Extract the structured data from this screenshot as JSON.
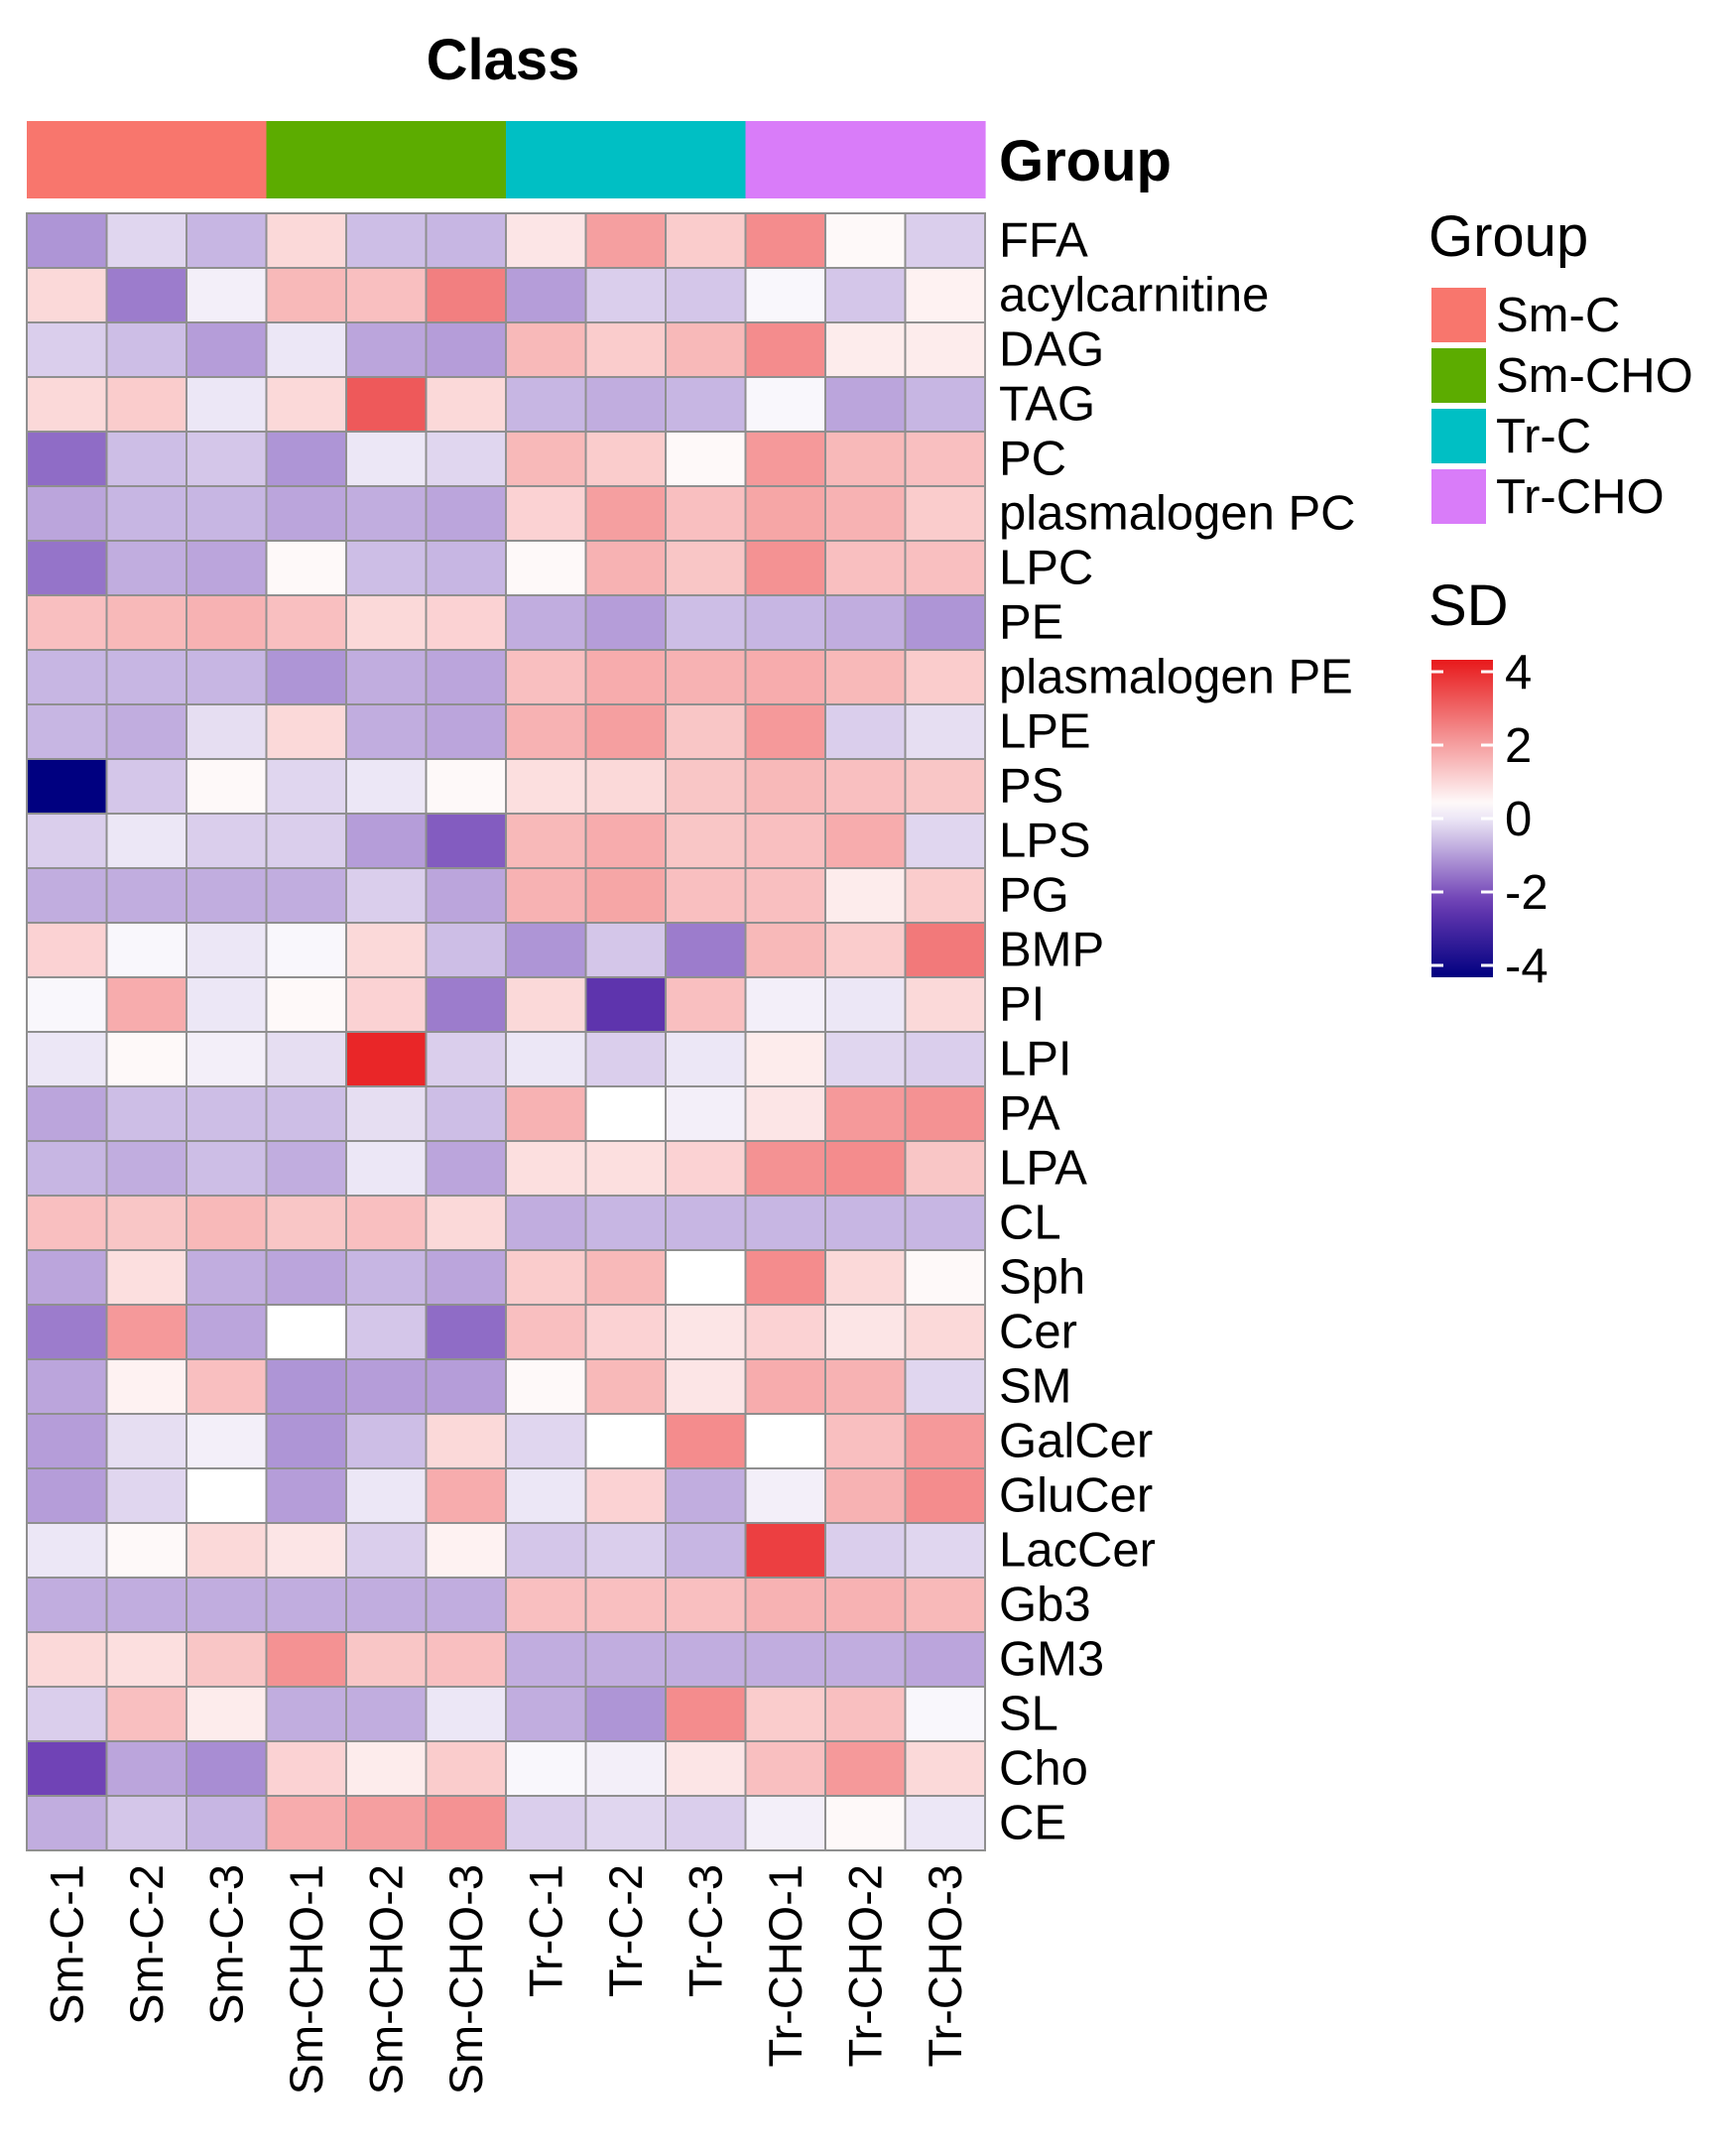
{
  "chart_data": {
    "type": "heatmap",
    "title": "Class",
    "annotation_title": "Group",
    "columns": [
      "Sm-C-1",
      "Sm-C-2",
      "Sm-C-3",
      "Sm-CHO-1",
      "Sm-CHO-2",
      "Sm-CHO-3",
      "Tr-C-1",
      "Tr-C-2",
      "Tr-C-3",
      "Tr-CHO-1",
      "Tr-CHO-2",
      "Tr-CHO-3"
    ],
    "column_groups": [
      "Sm-C",
      "Sm-C",
      "Sm-C",
      "Sm-CHO",
      "Sm-CHO",
      "Sm-CHO",
      "Tr-C",
      "Tr-C",
      "Tr-C",
      "Tr-CHO",
      "Tr-CHO",
      "Tr-CHO"
    ],
    "rows": [
      "FFA",
      "acylcarnitine",
      "DAG",
      "TAG",
      "PC",
      "plasmalogen PC",
      "LPC",
      "PE",
      "plasmalogen PE",
      "LPE",
      "PS",
      "LPS",
      "PG",
      "BMP",
      "PI",
      "LPI",
      "PA",
      "LPA",
      "CL",
      "Sph",
      "Cer",
      "SM",
      "GalCer",
      "GluCer",
      "LacCer",
      "Gb3",
      "GM3",
      "SL",
      "Cho",
      "CE"
    ],
    "values": [
      [
        -1.3,
        -0.5,
        -0.9,
        0.6,
        -0.8,
        -0.9,
        0.4,
        1.5,
        0.8,
        1.8,
        0.1,
        -0.6
      ],
      [
        0.6,
        -1.6,
        -0.2,
        1.1,
        1.0,
        2.0,
        -1.2,
        -0.6,
        -0.7,
        -0.1,
        -0.7,
        0.2
      ],
      [
        -0.6,
        -0.8,
        -1.2,
        -0.3,
        -1.1,
        -1.2,
        1.1,
        0.8,
        1.1,
        1.8,
        0.3,
        0.3
      ],
      [
        0.6,
        0.8,
        -0.3,
        0.6,
        2.6,
        0.6,
        -0.9,
        -1.0,
        -0.9,
        -0.1,
        -1.1,
        -0.9
      ],
      [
        -1.8,
        -0.8,
        -0.7,
        -1.3,
        -0.3,
        -0.5,
        1.1,
        0.8,
        0.1,
        1.6,
        1.1,
        1.0
      ],
      [
        -1.1,
        -0.9,
        -0.9,
        -1.1,
        -1.0,
        -1.1,
        0.7,
        1.5,
        1.0,
        1.4,
        1.2,
        0.8
      ],
      [
        -1.7,
        -1.0,
        -1.1,
        0.1,
        -0.8,
        -0.9,
        0.1,
        1.2,
        0.9,
        1.7,
        1.0,
        1.0
      ],
      [
        1.0,
        1.1,
        1.2,
        1.0,
        0.6,
        0.7,
        -1.0,
        -1.2,
        -0.8,
        -0.9,
        -1.0,
        -1.3
      ],
      [
        -0.9,
        -0.9,
        -0.9,
        -1.3,
        -1.0,
        -1.1,
        1.0,
        1.3,
        1.2,
        1.3,
        1.1,
        0.8
      ],
      [
        -0.9,
        -1.0,
        -0.4,
        0.6,
        -1.0,
        -1.1,
        1.2,
        1.5,
        0.9,
        1.6,
        -0.6,
        -0.4
      ],
      [
        -4.2,
        -0.7,
        0.1,
        -0.5,
        -0.3,
        0.1,
        0.5,
        0.6,
        0.9,
        1.1,
        1.0,
        0.9
      ],
      [
        -0.6,
        -0.3,
        -0.6,
        -0.6,
        -1.2,
        -2.0,
        1.1,
        1.3,
        0.9,
        1.0,
        1.3,
        -0.5
      ],
      [
        -1.0,
        -1.0,
        -1.0,
        -1.0,
        -0.6,
        -1.1,
        1.2,
        1.4,
        1.0,
        1.0,
        0.3,
        0.8
      ],
      [
        0.7,
        -0.1,
        -0.3,
        -0.1,
        0.6,
        -0.8,
        -1.3,
        -0.7,
        -1.6,
        1.1,
        0.8,
        2.1
      ],
      [
        -0.1,
        1.3,
        -0.3,
        0.1,
        0.7,
        -1.6,
        0.6,
        -2.6,
        1.0,
        -0.2,
        -0.3,
        0.6
      ],
      [
        -0.3,
        0.1,
        -0.2,
        -0.4,
        3.4,
        -0.6,
        -0.3,
        -0.6,
        -0.3,
        0.3,
        -0.5,
        -0.6
      ],
      [
        -1.1,
        -0.8,
        -0.8,
        -0.8,
        -0.4,
        -0.8,
        1.2,
        0.0,
        -0.2,
        0.4,
        1.6,
        1.7
      ],
      [
        -0.9,
        -1.0,
        -0.8,
        -1.0,
        -0.3,
        -1.1,
        0.5,
        0.5,
        0.7,
        1.7,
        1.8,
        0.9
      ],
      [
        1.0,
        0.9,
        1.1,
        0.9,
        1.0,
        0.6,
        -1.0,
        -0.9,
        -0.9,
        -0.9,
        -0.9,
        -0.9
      ],
      [
        -1.1,
        0.5,
        -1.0,
        -1.1,
        -0.9,
        -1.1,
        0.8,
        1.1,
        0.0,
        1.8,
        0.6,
        0.1
      ],
      [
        -1.6,
        1.6,
        -1.1,
        0.0,
        -0.7,
        -1.8,
        1.0,
        0.7,
        0.4,
        0.7,
        0.4,
        0.6
      ],
      [
        -1.1,
        0.2,
        1.0,
        -1.3,
        -1.2,
        -1.2,
        0.1,
        1.1,
        0.4,
        1.3,
        1.2,
        -0.5
      ],
      [
        -1.2,
        -0.4,
        -0.2,
        -1.3,
        -0.8,
        0.6,
        -0.5,
        0.0,
        1.8,
        0.0,
        1.0,
        1.6
      ],
      [
        -1.2,
        -0.5,
        0.0,
        -1.2,
        -0.3,
        1.3,
        -0.3,
        0.7,
        -1.0,
        -0.2,
        1.2,
        1.8
      ],
      [
        -0.3,
        0.1,
        0.6,
        0.4,
        -0.6,
        0.2,
        -0.7,
        -0.6,
        -0.9,
        3.0,
        -0.6,
        -0.5
      ],
      [
        -1.0,
        -1.0,
        -1.0,
        -1.0,
        -1.0,
        -1.0,
        1.0,
        1.0,
        1.0,
        1.2,
        1.2,
        1.1
      ],
      [
        0.6,
        0.5,
        0.9,
        1.7,
        0.9,
        1.0,
        -1.0,
        -1.0,
        -1.0,
        -1.0,
        -1.0,
        -1.1
      ],
      [
        -0.6,
        1.0,
        0.3,
        -1.0,
        -1.0,
        -0.3,
        -1.0,
        -1.3,
        1.8,
        0.8,
        1.0,
        -0.1
      ],
      [
        -2.3,
        -1.1,
        -1.4,
        0.7,
        0.3,
        0.8,
        -0.1,
        -0.2,
        0.4,
        1.0,
        1.6,
        0.6
      ],
      [
        -1.0,
        -0.7,
        -0.9,
        1.3,
        1.5,
        1.7,
        -0.6,
        -0.5,
        -0.6,
        -0.2,
        0.1,
        -0.3
      ]
    ],
    "color_scale": {
      "title": "SD",
      "ticks": [
        4,
        2,
        0,
        -2,
        -4
      ],
      "domain": [
        -4.2,
        3.6
      ],
      "colors": {
        "low": "#000080",
        "mid": "#ffffff",
        "high": "#e8191b",
        "purple": "#6a3bb3"
      }
    },
    "legend": {
      "title": "Group",
      "items": [
        {
          "label": "Sm-C",
          "color": "#f8766d"
        },
        {
          "label": "Sm-CHO",
          "color": "#5cac00"
        },
        {
          "label": "Tr-C",
          "color": "#00bfc4"
        },
        {
          "label": "Tr-CHO",
          "color": "#d97cf9"
        }
      ]
    }
  }
}
